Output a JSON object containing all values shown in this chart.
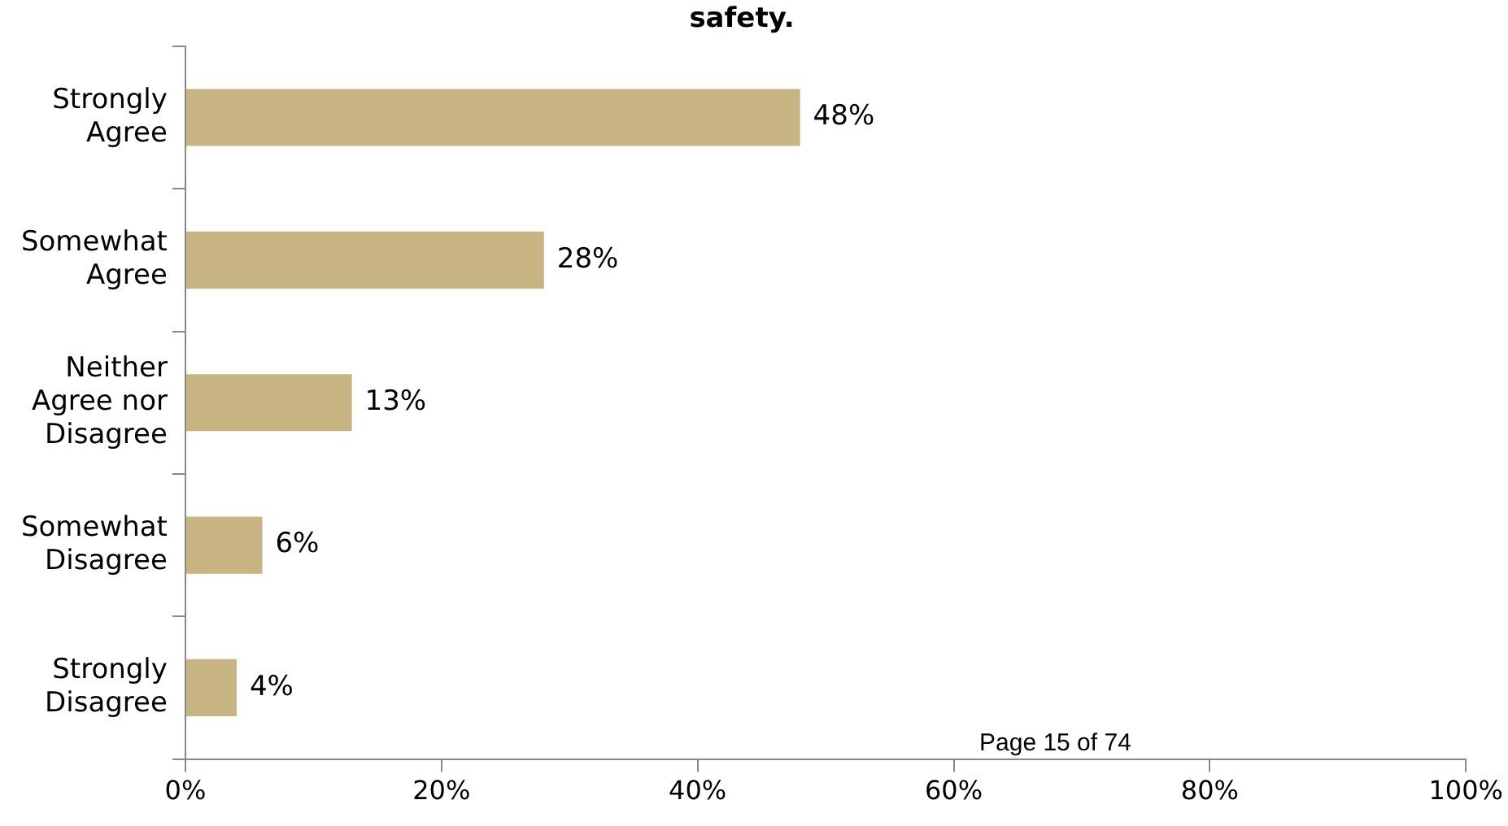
{
  "chart_data": {
    "type": "bar",
    "orientation": "horizontal",
    "title": "safety.",
    "categories": [
      "Strongly Agree",
      "Somewhat Agree",
      "Neither Agree nor Disagree",
      "Somewhat Disagree",
      "Strongly Disagree"
    ],
    "values": [
      48,
      28,
      13,
      6,
      4
    ],
    "color": "#c8b482",
    "value_labels": [
      "48%",
      "28%",
      "13%",
      "6%",
      "4%"
    ],
    "xlim": [
      0,
      100
    ],
    "xticks": [
      {
        "value": 0,
        "label": "0%"
      },
      {
        "value": 20,
        "label": "20%"
      },
      {
        "value": 40,
        "label": "40%"
      },
      {
        "value": 60,
        "label": "60%"
      },
      {
        "value": 80,
        "label": "80%"
      },
      {
        "value": 100,
        "label": "100%"
      }
    ],
    "legend": false,
    "annotations": [
      "Page 15 of 74"
    ]
  }
}
